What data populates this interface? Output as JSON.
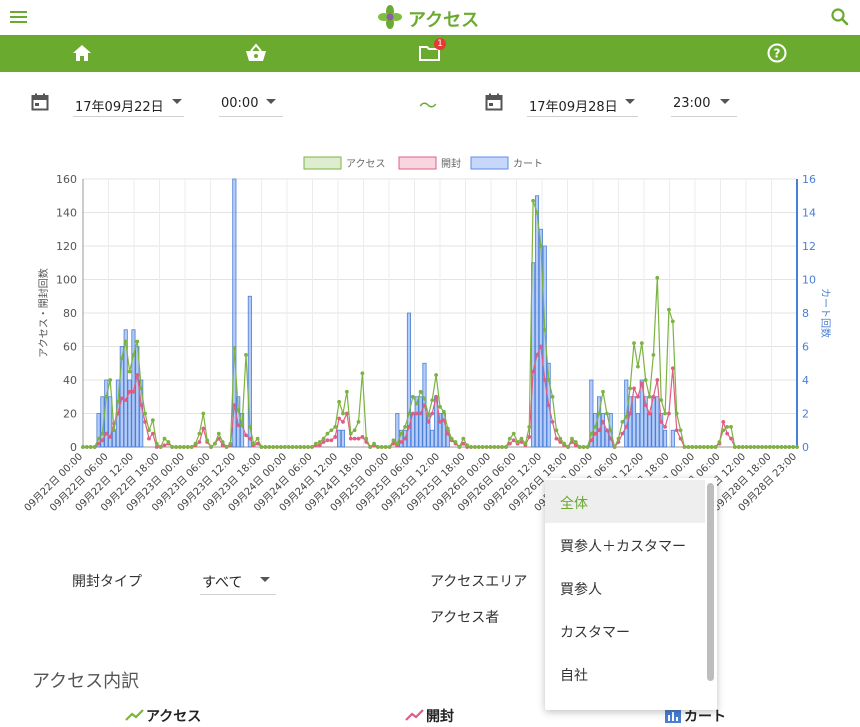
{
  "app": {
    "title": "アクセス",
    "accent": "#6aaa2f",
    "logo_colors": [
      "#6aaa2f",
      "#8e5ea2"
    ]
  },
  "nav": {
    "icons": [
      "home-icon",
      "basket-icon",
      "folder-icon",
      "help-icon"
    ],
    "folder_badge": "1",
    "badge_color": "#e53935"
  },
  "filters": {
    "start_date": "17年09月22日",
    "start_time": "00:00",
    "separator": "〜",
    "end_date": "17年09月28日",
    "end_time": "23:00"
  },
  "options": {
    "open_type_label": "開封タイプ",
    "open_type_value": "すべて",
    "access_area_label": "アクセスエリア",
    "accessor_label": "アクセス者"
  },
  "dropdown": {
    "items": [
      "全体",
      "買参人＋カスタマー",
      "買参人",
      "カスタマー",
      "自社"
    ],
    "selected_index": 0
  },
  "breakdown": {
    "heading": "アクセス内訳",
    "legend": [
      "アクセス",
      "開封",
      "カート"
    ]
  },
  "chart_data": {
    "type": "bar+line",
    "legend": [
      "アクセス",
      "開封",
      "カート"
    ],
    "legend_colors": [
      "#7cb342",
      "#e05d84",
      "#5b8def"
    ],
    "ylabel_left": "アクセス・開封回数",
    "ylabel_right": "カート回数",
    "yticks_left": [
      "0",
      "20",
      "40",
      "60",
      "80",
      "100",
      "120",
      "140",
      "160"
    ],
    "yticks_right": [
      "0",
      "2",
      "4",
      "6",
      "8",
      "10",
      "12",
      "14",
      "16"
    ],
    "ylim_left": [
      0,
      160
    ],
    "ylim_right": [
      0,
      16
    ],
    "x_start": "2017-09-22 00:00",
    "x_step_hours": 1,
    "xtick_labels": [
      "09月22日 00:00",
      "09月22日 06:00",
      "09月22日 12:00",
      "09月22日 18:00",
      "09月23日 00:00",
      "09月23日 06:00",
      "09月23日 12:00",
      "09月23日 18:00",
      "09月24日 00:00",
      "09月24日 06:00",
      "09月24日 12:00",
      "09月24日 18:00",
      "09月25日 00:00",
      "09月25日 06:00",
      "09月25日 12:00",
      "09月25日 18:00",
      "09月26日 00:00",
      "09月26日 06:00",
      "09月26日 12:00",
      "09月26日 18:00",
      "09月27日 00:00",
      "09月27日 06:00",
      "09月27日 12:00",
      "09月27日 18:00",
      "09月28日 00:00",
      "09月28日 06:00",
      "09月28日 12:00",
      "09月28日 18:00",
      "09月28日 23:00"
    ],
    "grid": true,
    "access": [
      0,
      0,
      0,
      0,
      5,
      8,
      30,
      40,
      10,
      27,
      53,
      63,
      45,
      55,
      63,
      35,
      20,
      10,
      16,
      2,
      0,
      5,
      3,
      0,
      0,
      0,
      0,
      0,
      0,
      2,
      8,
      20,
      4,
      0,
      2,
      8,
      3,
      0,
      2,
      59,
      22,
      13,
      55,
      12,
      2,
      5,
      0,
      0,
      0,
      0,
      0,
      0,
      0,
      0,
      0,
      0,
      0,
      0,
      0,
      0,
      2,
      3,
      5,
      8,
      10,
      12,
      27,
      20,
      33,
      8,
      10,
      15,
      44,
      5,
      0,
      2,
      0,
      0,
      0,
      0,
      4,
      2,
      8,
      12,
      20,
      30,
      26,
      33,
      29,
      19,
      28,
      43,
      24,
      21,
      11,
      5,
      3,
      0,
      5,
      1,
      0,
      0,
      0,
      0,
      0,
      0,
      0,
      0,
      0,
      0,
      5,
      8,
      3,
      5,
      2,
      12,
      147,
      140,
      120,
      70,
      40,
      30,
      10,
      5,
      2,
      0,
      5,
      3,
      0,
      0,
      0,
      8,
      12,
      20,
      33,
      20,
      10,
      0,
      5,
      15,
      18,
      35,
      62,
      48,
      62,
      40,
      30,
      55,
      101,
      28,
      20,
      82,
      75,
      20,
      10,
      0,
      0,
      0,
      0,
      0,
      0,
      0,
      0,
      0,
      3,
      10,
      12,
      12,
      0,
      0,
      0,
      0,
      0,
      0,
      0,
      0,
      0,
      0,
      0,
      0,
      0,
      0,
      0,
      0,
      0
    ],
    "open": [
      0,
      0,
      0,
      0,
      2,
      4,
      8,
      6,
      14,
      20,
      29,
      28,
      33,
      33,
      43,
      25,
      15,
      5,
      8,
      0,
      0,
      1,
      2,
      0,
      0,
      0,
      0,
      0,
      0,
      1,
      3,
      11,
      3,
      0,
      2,
      5,
      1,
      0,
      1,
      25,
      13,
      13,
      7,
      5,
      1,
      2,
      0,
      0,
      0,
      0,
      0,
      0,
      0,
      0,
      0,
      0,
      0,
      0,
      0,
      0,
      1,
      1,
      3,
      4,
      4,
      6,
      17,
      15,
      20,
      5,
      5,
      5,
      6,
      3,
      0,
      1,
      0,
      0,
      0,
      0,
      2,
      1,
      3,
      5,
      12,
      20,
      20,
      20,
      25,
      15,
      20,
      30,
      15,
      16,
      8,
      4,
      2,
      0,
      2,
      0,
      0,
      0,
      0,
      0,
      0,
      0,
      0,
      0,
      0,
      0,
      2,
      4,
      2,
      3,
      1,
      6,
      45,
      55,
      60,
      40,
      25,
      15,
      5,
      3,
      1,
      0,
      3,
      1,
      0,
      0,
      0,
      4,
      8,
      10,
      15,
      10,
      5,
      0,
      3,
      8,
      12,
      20,
      35,
      30,
      38,
      25,
      20,
      30,
      40,
      15,
      12,
      20,
      47,
      10,
      5,
      0,
      0,
      0,
      0,
      0,
      0,
      0,
      0,
      0,
      2,
      15,
      8,
      5,
      0,
      0,
      0,
      0,
      0,
      0,
      0,
      0,
      0,
      0,
      0,
      0,
      0,
      0,
      0,
      0,
      0
    ],
    "cart": [
      0,
      0,
      0,
      0,
      2,
      3,
      4,
      3,
      1,
      4,
      6,
      7,
      4,
      7,
      6,
      4,
      0,
      0,
      0,
      0,
      0,
      0,
      0,
      0,
      0,
      0,
      0,
      0,
      0,
      0,
      0,
      0,
      0,
      0,
      0,
      0,
      0,
      0,
      0,
      16,
      3,
      2,
      0,
      9,
      0,
      0,
      0,
      0,
      0,
      0,
      0,
      0,
      0,
      0,
      0,
      0,
      0,
      0,
      0,
      0,
      0,
      0,
      0,
      0,
      0,
      0,
      1,
      1,
      0,
      0,
      0,
      0,
      0,
      0,
      0,
      0,
      0,
      0,
      0,
      0,
      0,
      2,
      1,
      1,
      8,
      2,
      3,
      3,
      5,
      2,
      1,
      3,
      2,
      2,
      1,
      0,
      0,
      0,
      0,
      0,
      0,
      0,
      0,
      0,
      0,
      0,
      0,
      0,
      0,
      0,
      0,
      0,
      0,
      0,
      0,
      0,
      11,
      15,
      13,
      12,
      5,
      0,
      0,
      0,
      0,
      0,
      0,
      0,
      0,
      0,
      0,
      4,
      2,
      3,
      2,
      1,
      2,
      0,
      0,
      0,
      4,
      3,
      3,
      2,
      4,
      3,
      2,
      3,
      3,
      2,
      1,
      0,
      1,
      0,
      0,
      0,
      0,
      0,
      0,
      0,
      0,
      0,
      0,
      0,
      0,
      0,
      0,
      0,
      0,
      0,
      0,
      0,
      0,
      0,
      0,
      0,
      0,
      0,
      0,
      0,
      0,
      0,
      0,
      0
    ]
  }
}
